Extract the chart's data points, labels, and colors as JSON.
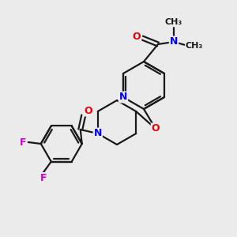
{
  "background_color": "#ebebeb",
  "bond_color": "#1a1a1a",
  "atom_colors": {
    "N": "#0000ee",
    "O": "#ee0000",
    "F": "#cc00cc",
    "C": "#1a1a1a"
  },
  "bond_lw": 1.6,
  "font_size": 9
}
